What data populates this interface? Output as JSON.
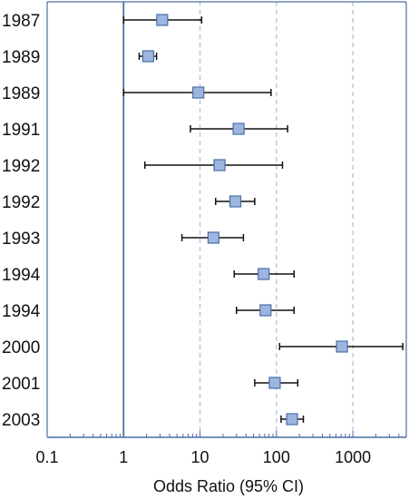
{
  "chart_data": {
    "type": "forest",
    "xlabel": "Odds Ratio (95% CI)",
    "x_scale": "log10",
    "xlim": [
      0.1,
      5000
    ],
    "x_ticks": [
      "0.1",
      "1",
      "10",
      "100",
      "1000"
    ],
    "reference_line": 1,
    "grid_lines": [
      10,
      100,
      1000
    ],
    "colors": {
      "marker_fill": "#9DB6E0",
      "marker_stroke": "#4A6FA5",
      "axis": "#4A6FA5",
      "grid": "#A9BFE0",
      "whisker": "#111111"
    },
    "studies": [
      {
        "label": "1987",
        "or": 3.2,
        "lower": 1.0,
        "upper": 10.5
      },
      {
        "label": "1989",
        "or": 2.1,
        "lower": 1.6,
        "upper": 2.7
      },
      {
        "label": "1989",
        "or": 9.5,
        "lower": 1.0,
        "upper": 85
      },
      {
        "label": "1991",
        "or": 32,
        "lower": 7.5,
        "upper": 140
      },
      {
        "label": "1992",
        "or": 18,
        "lower": 1.9,
        "upper": 120
      },
      {
        "label": "1992",
        "or": 29,
        "lower": 16,
        "upper": 52
      },
      {
        "label": "1993",
        "or": 15,
        "lower": 5.8,
        "upper": 37
      },
      {
        "label": "1994",
        "or": 68,
        "lower": 28,
        "upper": 170
      },
      {
        "label": "1994",
        "or": 72,
        "lower": 30,
        "upper": 170
      },
      {
        "label": "2000",
        "or": 720,
        "lower": 110,
        "upper": 4500
      },
      {
        "label": "2001",
        "or": 95,
        "lower": 52,
        "upper": 190
      },
      {
        "label": "2003",
        "or": 160,
        "lower": 115,
        "upper": 225
      }
    ]
  }
}
